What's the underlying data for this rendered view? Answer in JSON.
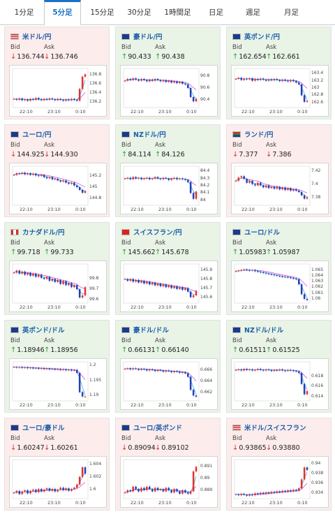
{
  "tabs": [
    {
      "label": "1分足",
      "active": false
    },
    {
      "label": "5分足",
      "active": true
    },
    {
      "label": "15分足",
      "active": false
    },
    {
      "label": "30分足",
      "active": false
    },
    {
      "label": "1時間足",
      "active": false
    },
    {
      "label": "日足",
      "active": false
    },
    {
      "label": "週足",
      "active": false
    },
    {
      "label": "月足",
      "active": false
    }
  ],
  "labels": {
    "bid": "Bid",
    "ask": "Ask"
  },
  "colors": {
    "up": "#2e9a3a",
    "down": "#d0312d",
    "candle_up": "#e0322f",
    "candle_down": "#2140b8",
    "ma": "#d050d8",
    "ma2": "#40b0e0",
    "card_up": "#e9f3e6",
    "card_down": "#fdecec"
  },
  "chart_data": [
    {
      "type": "candlestick",
      "pair": "米ドル/円",
      "flag": "us-flag",
      "dir": "down",
      "bid": "136.744",
      "ask": "136.746",
      "x_ticks": [
        "22:10",
        "23:10",
        "0:10"
      ],
      "y_ticks": [
        "136.8",
        "136.6",
        "136.4",
        "136.2"
      ],
      "ylim": [
        136.1,
        136.9
      ],
      "closes": [
        136.26,
        136.24,
        136.27,
        136.23,
        136.25,
        136.22,
        136.26,
        136.24,
        136.28,
        136.25,
        136.23,
        136.26,
        136.24,
        136.27,
        136.25,
        136.23,
        136.26,
        136.24,
        136.22,
        136.25,
        136.23,
        136.26,
        136.24,
        136.22,
        136.48,
        136.75,
        136.8
      ]
    },
    {
      "type": "candlestick",
      "pair": "豪ドル/円",
      "flag": "au-flag",
      "dir": "up",
      "bid": "90.433",
      "ask": "90.438",
      "x_ticks": [
        "22:10",
        "23:10",
        "0:10"
      ],
      "y_ticks": [
        "90.8",
        "90.6",
        "90.4"
      ],
      "ylim": [
        90.3,
        90.9
      ],
      "closes": [
        90.72,
        90.75,
        90.73,
        90.76,
        90.74,
        90.72,
        90.75,
        90.73,
        90.71,
        90.74,
        90.72,
        90.75,
        90.73,
        90.71,
        90.73,
        90.7,
        90.72,
        90.69,
        90.71,
        90.68,
        90.7,
        90.67,
        90.66,
        90.6,
        90.45,
        90.38,
        90.42
      ]
    },
    {
      "type": "candlestick",
      "pair": "英ポンド/円",
      "flag": "uk-flag",
      "dir": "up",
      "bid": "162.654",
      "ask": "162.661",
      "x_ticks": [
        "22:10",
        "23:10",
        "0:10"
      ],
      "y_ticks": [
        "163.4",
        "163.2",
        "163",
        "162.8",
        "162.6"
      ],
      "ylim": [
        162.5,
        163.5
      ],
      "closes": [
        163.25,
        163.28,
        163.22,
        163.26,
        163.24,
        163.27,
        163.2,
        163.25,
        163.22,
        163.26,
        163.23,
        163.2,
        163.24,
        163.21,
        163.25,
        163.22,
        163.19,
        163.23,
        163.2,
        163.18,
        163.22,
        163.19,
        163.15,
        163.1,
        162.8,
        162.62,
        162.65
      ]
    },
    {
      "type": "candlestick",
      "pair": "ユーロ/円",
      "flag": "eu-flag",
      "dir": "down",
      "bid": "144.925",
      "ask": "144.930",
      "x_ticks": [
        "22:10",
        "23:10",
        "0:10"
      ],
      "y_ticks": [
        "145.2",
        "145",
        "144.8"
      ],
      "ylim": [
        144.7,
        145.35
      ],
      "closes": [
        145.22,
        145.25,
        145.24,
        145.26,
        145.23,
        145.25,
        145.22,
        145.24,
        145.21,
        145.2,
        145.22,
        145.18,
        145.16,
        145.18,
        145.14,
        145.15,
        145.12,
        145.1,
        145.12,
        145.08,
        145.06,
        145.08,
        145.03,
        145.0,
        144.95,
        144.9,
        144.93
      ]
    },
    {
      "type": "candlestick",
      "pair": "NZドル/円",
      "flag": "nz-flag",
      "dir": "up",
      "bid": "84.114",
      "ask": "84.126",
      "x_ticks": [
        "22:10",
        "23:10",
        "0:10"
      ],
      "y_ticks": [
        "84.4",
        "84.3",
        "84.2",
        "84.1",
        "84"
      ],
      "ylim": [
        83.95,
        84.45
      ],
      "closes": [
        84.3,
        84.31,
        84.29,
        84.32,
        84.3,
        84.31,
        84.29,
        84.3,
        84.31,
        84.29,
        84.3,
        84.32,
        84.3,
        84.29,
        84.31,
        84.3,
        84.28,
        84.3,
        84.31,
        84.29,
        84.3,
        84.29,
        84.28,
        84.25,
        84.1,
        84.02,
        84.12
      ]
    },
    {
      "type": "candlestick",
      "pair": "ランド/円",
      "flag": "za-flag",
      "dir": "down",
      "bid": "7.377",
      "ask": "7.386",
      "x_ticks": [
        "22:10",
        "23:10",
        "0:10"
      ],
      "y_ticks": [
        "7.42",
        "7.4",
        "7.38"
      ],
      "ylim": [
        7.37,
        7.425
      ],
      "closes": [
        7.405,
        7.41,
        7.412,
        7.408,
        7.402,
        7.405,
        7.4,
        7.398,
        7.402,
        7.398,
        7.395,
        7.398,
        7.394,
        7.396,
        7.393,
        7.396,
        7.392,
        7.395,
        7.391,
        7.394,
        7.39,
        7.392,
        7.39,
        7.388,
        7.383,
        7.378,
        7.38
      ]
    },
    {
      "type": "candlestick",
      "pair": "カナダドル/円",
      "flag": "ca-flag",
      "dir": "up",
      "bid": "99.718",
      "ask": "99.733",
      "x_ticks": [
        "22:10",
        "23:10",
        "0:10"
      ],
      "y_ticks": [
        "99.8",
        "99.7",
        "99.6"
      ],
      "ylim": [
        99.58,
        99.93
      ],
      "closes": [
        99.86,
        99.88,
        99.85,
        99.87,
        99.84,
        99.86,
        99.83,
        99.85,
        99.82,
        99.84,
        99.81,
        99.8,
        99.82,
        99.78,
        99.8,
        99.77,
        99.79,
        99.75,
        99.78,
        99.74,
        99.76,
        99.72,
        99.74,
        99.7,
        99.62,
        99.64,
        99.72
      ]
    },
    {
      "type": "candlestick",
      "pair": "スイスフラン/円",
      "flag": "ch-flag",
      "dir": "up",
      "bid": "145.662",
      "ask": "145.678",
      "x_ticks": [
        "22:10",
        "23:10",
        "0:10"
      ],
      "y_ticks": [
        "145.9",
        "145.8",
        "145.7",
        "145.6"
      ],
      "ylim": [
        145.55,
        145.95
      ],
      "closes": [
        145.8,
        145.78,
        145.8,
        145.77,
        145.79,
        145.76,
        145.78,
        145.75,
        145.77,
        145.74,
        145.76,
        145.73,
        145.75,
        145.72,
        145.74,
        145.71,
        145.73,
        145.7,
        145.72,
        145.69,
        145.71,
        145.68,
        145.7,
        145.66,
        145.6,
        145.62,
        145.67
      ]
    },
    {
      "type": "candlestick",
      "pair": "ユーロ/ドル",
      "flag": "eu-flag",
      "dir": "up",
      "bid": "1.05983",
      "ask": "1.05987",
      "x_ticks": [
        "22:10",
        "23:10",
        "0:10"
      ],
      "y_ticks": [
        "1.065",
        "1.064",
        "1.063",
        "1.062",
        "1.061",
        "1.06"
      ],
      "ylim": [
        1.0595,
        1.0658
      ],
      "closes": [
        1.0648,
        1.0649,
        1.065,
        1.0651,
        1.065,
        1.0649,
        1.065,
        1.0648,
        1.0647,
        1.0646,
        1.0645,
        1.0644,
        1.0643,
        1.0642,
        1.0641,
        1.064,
        1.0639,
        1.0638,
        1.0638,
        1.0637,
        1.0636,
        1.0635,
        1.0634,
        1.0625,
        1.0608,
        1.06,
        1.0598
      ]
    },
    {
      "type": "candlestick",
      "pair": "英ポンド/ドル",
      "flag": "uk-flag",
      "dir": "up",
      "bid": "1.18946",
      "ask": "1.18956",
      "x_ticks": [
        "22:10",
        "23:10",
        "0:10"
      ],
      "y_ticks": [
        "1.2",
        "1.195",
        "1.19"
      ],
      "ylim": [
        1.1885,
        1.2008
      ],
      "closes": [
        1.1995,
        1.1993,
        1.1995,
        1.1992,
        1.1994,
        1.1991,
        1.1993,
        1.199,
        1.1992,
        1.1989,
        1.1991,
        1.1988,
        1.199,
        1.1987,
        1.1989,
        1.1986,
        1.1988,
        1.1985,
        1.1987,
        1.1984,
        1.1986,
        1.1983,
        1.1985,
        1.1975,
        1.191,
        1.1895,
        1.1895
      ]
    },
    {
      "type": "candlestick",
      "pair": "豪ドル/ドル",
      "flag": "au-flag",
      "dir": "up",
      "bid": "0.66131",
      "ask": "0.66140",
      "x_ticks": [
        "22:10",
        "23:10",
        "0:10"
      ],
      "y_ticks": [
        "0.666",
        "0.664",
        "0.662"
      ],
      "ylim": [
        0.6608,
        0.6672
      ],
      "closes": [
        0.6662,
        0.6663,
        0.6661,
        0.6663,
        0.6662,
        0.666,
        0.6662,
        0.6661,
        0.6659,
        0.6661,
        0.666,
        0.6658,
        0.666,
        0.6659,
        0.6657,
        0.6659,
        0.6658,
        0.6656,
        0.6658,
        0.6657,
        0.6655,
        0.6656,
        0.6654,
        0.6648,
        0.6625,
        0.6615,
        0.6613
      ]
    },
    {
      "type": "candlestick",
      "pair": "NZドル/ドル",
      "flag": "nz-flag",
      "dir": "up",
      "bid": "0.61511",
      "ask": "0.61525",
      "x_ticks": [
        "22:10",
        "23:10",
        "0:10"
      ],
      "y_ticks": [
        "0.618",
        "0.616",
        "0.614"
      ],
      "ylim": [
        0.6135,
        0.6205
      ],
      "closes": [
        0.6192,
        0.6193,
        0.6191,
        0.6194,
        0.6192,
        0.6193,
        0.6191,
        0.6192,
        0.6194,
        0.6192,
        0.6191,
        0.6193,
        0.6192,
        0.619,
        0.6192,
        0.6191,
        0.6193,
        0.6191,
        0.619,
        0.6192,
        0.6191,
        0.619,
        0.6189,
        0.6186,
        0.6165,
        0.6145,
        0.6151
      ]
    },
    {
      "type": "candlestick",
      "pair": "ユーロ/豪ドル",
      "flag": "eu-flag",
      "dir": "down",
      "bid": "1.60247",
      "ask": "1.60261",
      "x_ticks": [
        "22:10",
        "23:10",
        "0:10"
      ],
      "y_ticks": [
        "1.604",
        "1.602",
        "1.6"
      ],
      "ylim": [
        1.5988,
        1.6045
      ],
      "closes": [
        1.5995,
        1.5998,
        1.5993,
        1.5997,
        1.5999,
        1.5994,
        1.5998,
        1.6,
        1.5996,
        1.6001,
        1.5997,
        1.6,
        1.6002,
        1.5998,
        1.6001,
        1.5997,
        1.6,
        1.6003,
        1.5999,
        1.6002,
        1.5998,
        1.6001,
        1.6003,
        1.6008,
        1.602,
        1.6035,
        1.6025
      ]
    },
    {
      "type": "candlestick",
      "pair": "ユーロ/英ポンド",
      "flag": "eu-flag",
      "dir": "down",
      "bid": "0.89094",
      "ask": "0.89102",
      "x_ticks": [
        "22:10",
        "23:10",
        "0:10"
      ],
      "y_ticks": [
        "0.891",
        "0.89",
        "0.889"
      ],
      "ylim": [
        0.8884,
        0.8915
      ],
      "closes": [
        0.8888,
        0.889,
        0.8889,
        0.8893,
        0.8891,
        0.8889,
        0.8892,
        0.889,
        0.8893,
        0.8891,
        0.8889,
        0.8892,
        0.889,
        0.8891,
        0.8889,
        0.8892,
        0.889,
        0.8888,
        0.8891,
        0.8889,
        0.8887,
        0.889,
        0.8888,
        0.8887,
        0.8889,
        0.8906,
        0.891
      ]
    },
    {
      "type": "candlestick",
      "pair": "米ドル/スイスフラン",
      "flag": "us-flag",
      "dir": "down",
      "bid": "0.93865",
      "ask": "0.93880",
      "x_ticks": [
        "22:10",
        "23:10",
        "0:10"
      ],
      "y_ticks": [
        "0.94",
        "0.938",
        "0.936",
        "0.934"
      ],
      "ylim": [
        0.9332,
        0.9405
      ],
      "closes": [
        0.9338,
        0.9336,
        0.9339,
        0.9337,
        0.9335,
        0.9338,
        0.9336,
        0.934,
        0.9338,
        0.9341,
        0.9339,
        0.9342,
        0.934,
        0.9343,
        0.9341,
        0.9344,
        0.9342,
        0.9345,
        0.9343,
        0.9346,
        0.9344,
        0.9347,
        0.9345,
        0.935,
        0.9368,
        0.9392,
        0.9387
      ]
    }
  ]
}
